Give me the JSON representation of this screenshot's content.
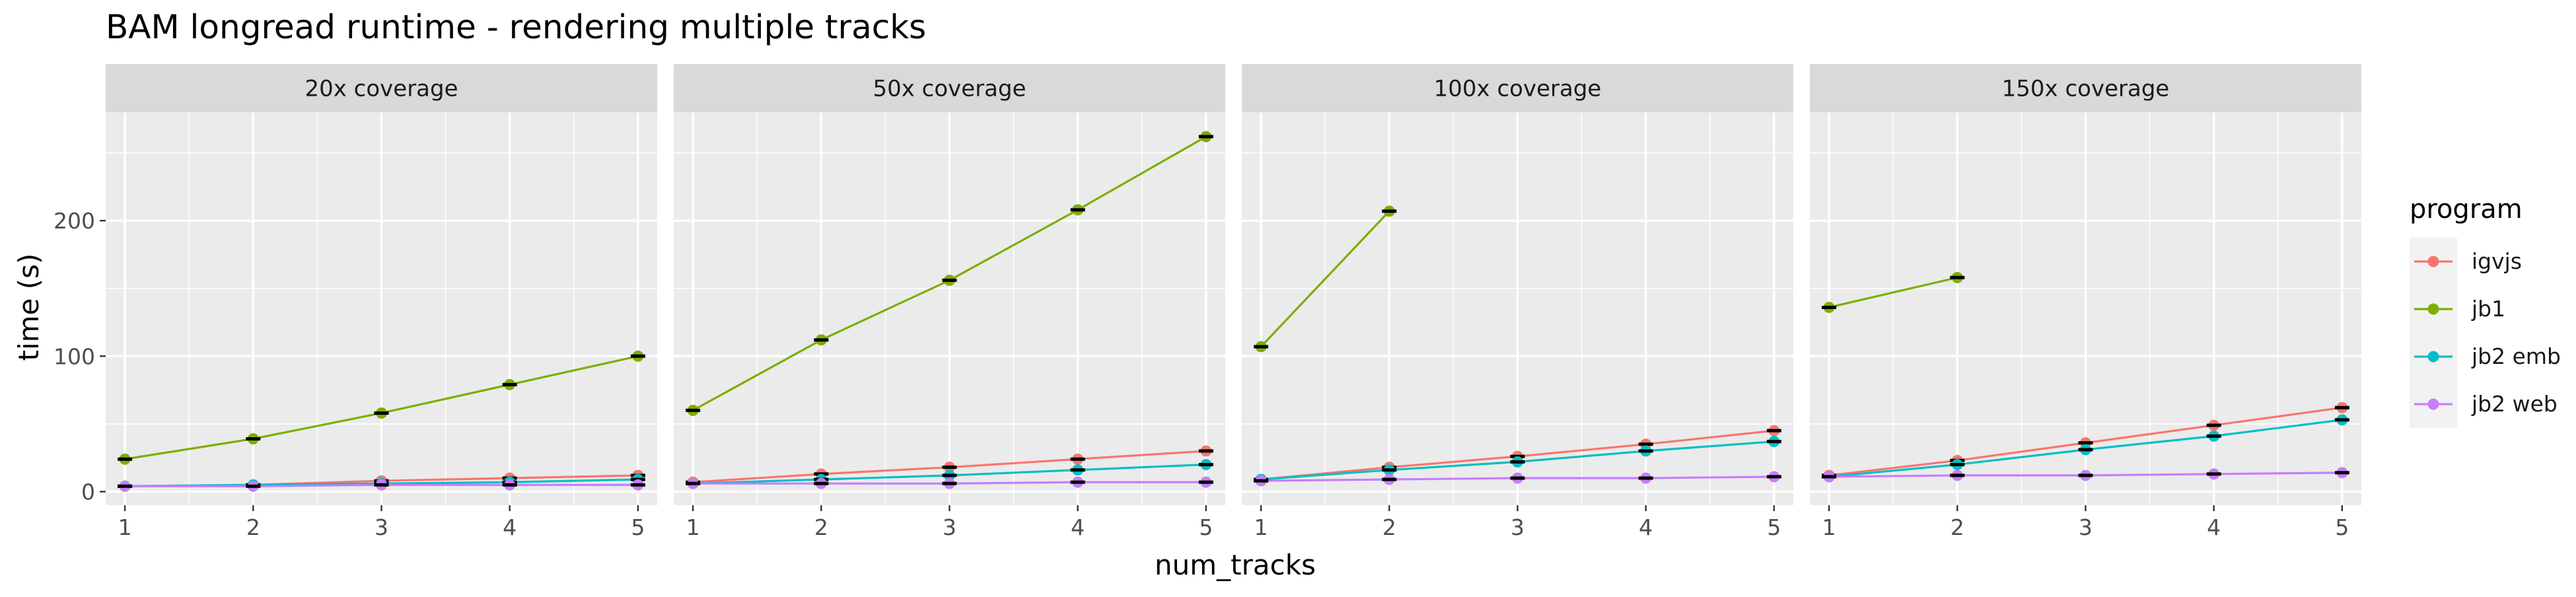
{
  "chart_data": {
    "type": "line",
    "title": "BAM longread runtime - rendering multiple tracks",
    "xlabel": "num_tracks",
    "ylabel": "time (s)",
    "x": [
      1,
      2,
      3,
      4,
      5
    ],
    "x_ticks": [
      "1",
      "2",
      "3",
      "4",
      "5"
    ],
    "y_ticks": [
      0,
      100,
      200
    ],
    "xlim": [
      0.85,
      5.15
    ],
    "ylim": [
      -10,
      280
    ],
    "grid": true,
    "facets": [
      {
        "label": "20x coverage",
        "series": [
          {
            "name": "igvjs",
            "values": [
              4,
              5,
              8,
              10,
              12
            ]
          },
          {
            "name": "jb1",
            "values": [
              24,
              39,
              58,
              79,
              100
            ]
          },
          {
            "name": "jb2 emb",
            "values": [
              4,
              5,
              6,
              7,
              9
            ]
          },
          {
            "name": "jb2 web",
            "values": [
              4,
              4,
              5,
              5,
              5
            ]
          }
        ]
      },
      {
        "label": "50x coverage",
        "series": [
          {
            "name": "igvjs",
            "values": [
              7,
              13,
              18,
              24,
              30
            ]
          },
          {
            "name": "jb1",
            "values": [
              60,
              112,
              156,
              208,
              262
            ]
          },
          {
            "name": "jb2 emb",
            "values": [
              6,
              9,
              12,
              16,
              20
            ]
          },
          {
            "name": "jb2 web",
            "values": [
              6,
              6,
              6,
              7,
              7
            ]
          }
        ]
      },
      {
        "label": "100x coverage",
        "series": [
          {
            "name": "igvjs",
            "values": [
              9,
              18,
              26,
              35,
              45
            ]
          },
          {
            "name": "jb1",
            "values": [
              107,
              207,
              null,
              null,
              null
            ]
          },
          {
            "name": "jb2 emb",
            "values": [
              9,
              16,
              22,
              30,
              37
            ]
          },
          {
            "name": "jb2 web",
            "values": [
              8,
              9,
              10,
              10,
              11
            ]
          }
        ]
      },
      {
        "label": "150x coverage",
        "series": [
          {
            "name": "igvjs",
            "values": [
              12,
              23,
              36,
              49,
              62
            ]
          },
          {
            "name": "jb1",
            "values": [
              136,
              158,
              null,
              null,
              null
            ]
          },
          {
            "name": "jb2 emb",
            "values": [
              11,
              20,
              31,
              41,
              53
            ]
          },
          {
            "name": "jb2 web",
            "values": [
              11,
              12,
              12,
              13,
              14
            ]
          }
        ]
      }
    ],
    "legend": {
      "title": "program",
      "position": "right",
      "entries": [
        {
          "name": "igvjs",
          "color": "#F8766D"
        },
        {
          "name": "jb1",
          "color": "#7CAE00"
        },
        {
          "name": "jb2 emb",
          "color": "#00BFC4"
        },
        {
          "name": "jb2 web",
          "color": "#C77CFF"
        }
      ]
    }
  }
}
